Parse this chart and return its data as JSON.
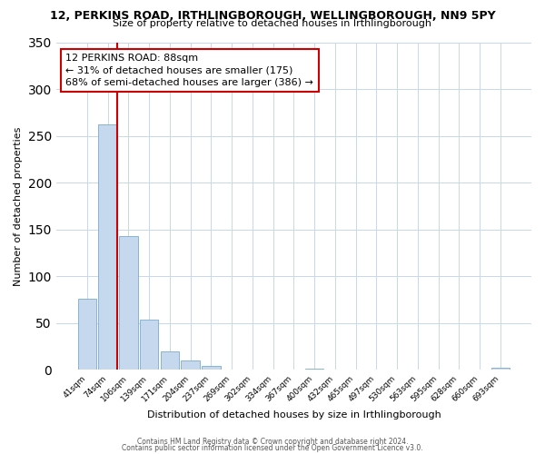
{
  "title1": "12, PERKINS ROAD, IRTHLINGBOROUGH, WELLINGBOROUGH, NN9 5PY",
  "title2": "Size of property relative to detached houses in Irthlingborough",
  "xlabel": "Distribution of detached houses by size in Irthlingborough",
  "ylabel": "Number of detached properties",
  "bar_labels": [
    "41sqm",
    "74sqm",
    "106sqm",
    "139sqm",
    "171sqm",
    "204sqm",
    "237sqm",
    "269sqm",
    "302sqm",
    "334sqm",
    "367sqm",
    "400sqm",
    "432sqm",
    "465sqm",
    "497sqm",
    "530sqm",
    "563sqm",
    "595sqm",
    "628sqm",
    "660sqm",
    "693sqm"
  ],
  "bar_values": [
    76,
    262,
    143,
    54,
    20,
    10,
    4,
    0,
    0,
    0,
    0,
    1,
    0,
    0,
    0,
    0,
    0,
    0,
    0,
    0,
    2
  ],
  "bar_color": "#c5d8ed",
  "bar_edge_color": "#7aabcf",
  "ylim": [
    0,
    350
  ],
  "yticks": [
    0,
    50,
    100,
    150,
    200,
    250,
    300,
    350
  ],
  "vline_color": "#cc0000",
  "annotation_title": "12 PERKINS ROAD: 88sqm",
  "annotation_line1": "← 31% of detached houses are smaller (175)",
  "annotation_line2": "68% of semi-detached houses are larger (386) →",
  "annotation_box_color": "#cc0000",
  "footer1": "Contains HM Land Registry data © Crown copyright and database right 2024.",
  "footer2": "Contains public sector information licensed under the Open Government Licence v3.0.",
  "background_color": "#ffffff",
  "grid_color": "#c8d8ec"
}
